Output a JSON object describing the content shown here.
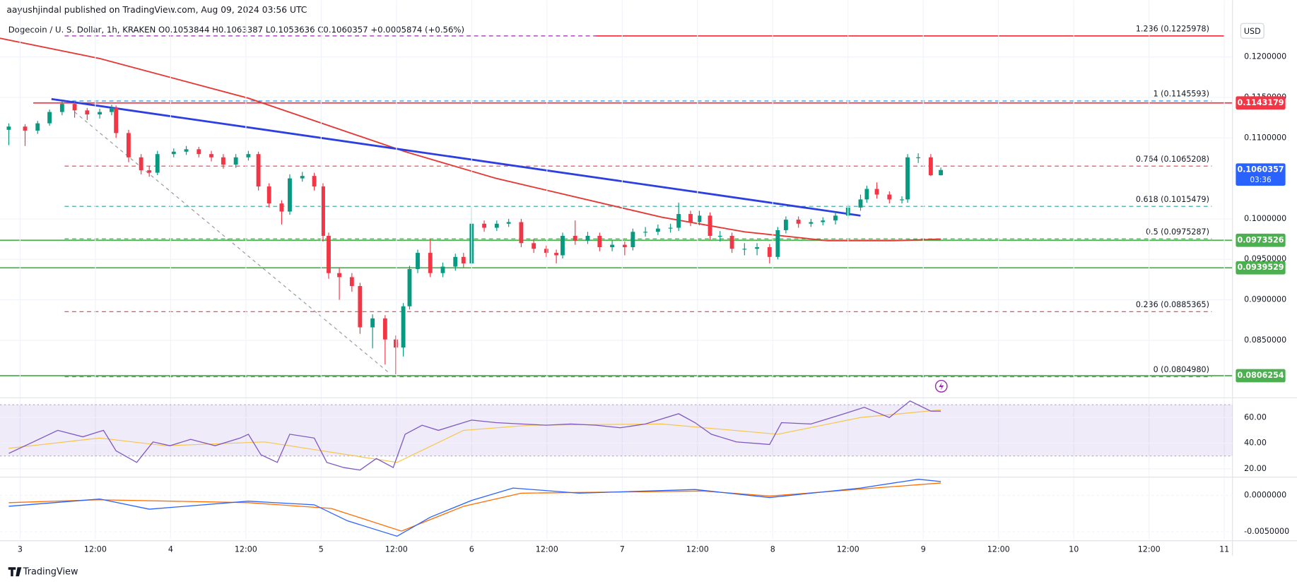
{
  "chart_data": {
    "type": "candlestick",
    "header": "aayushjindal published on TradingView.com, Aug 09, 2024 03:56 UTC",
    "title": "Dogecoin / U. S. Dollar, 1h, KRAKEN O0.1053844 H0.1063387 L0.1053636 C0.1060357 +0.0005874 (+0.56%)",
    "currency": "USD",
    "brand": "TradingView",
    "up_color": "#089981",
    "down_color": "#f23645",
    "x": [
      -1.8,
      0.8,
      2.8,
      4.7,
      6.7,
      8.7,
      10.7,
      12.7,
      14.6,
      15.3,
      17.3,
      19.3,
      20.6,
      21.9,
      24.5,
      26.5,
      28.5,
      30.5,
      32.4,
      34.4,
      36.4,
      38.0,
      39.7,
      41.7,
      43.0,
      45.0,
      46.9,
      48.3,
      49.2,
      50.9,
      52.9,
      54.2,
      56.2,
      58.2,
      59.9,
      61.1,
      62.1,
      63.4,
      65.4,
      67.4,
      69.4,
      70.7,
      72.0,
      74.0,
      76.0,
      77.9,
      79.9,
      81.9,
      83.9,
      85.5,
      86.5,
      88.5,
      90.5,
      92.4,
      94.4,
      96.4,
      97.7,
      99.7,
      101.7,
      103.7,
      105.0,
      106.9,
      108.3,
      110.0,
      111.6,
      113.5,
      115.5,
      117.5,
      119.5,
      120.8,
      122.1,
      124.1,
      126.1,
      128.0,
      130.0,
      132.0,
      134.0,
      135.0,
      136.6,
      138.6,
      140.6,
      141.5,
      143.2,
      145.2,
      146.8
    ],
    "open": [
      0.111,
      0.1114,
      0.1109,
      0.1118,
      0.1132,
      0.1142,
      0.1134,
      0.1129,
      0.1132,
      0.1137,
      0.1106,
      0.1076,
      0.106,
      0.1057,
      0.108,
      0.1083,
      0.1086,
      0.108,
      0.1076,
      0.1067,
      0.1076,
      0.108,
      0.104,
      0.1019,
      0.1009,
      0.105,
      0.1053,
      0.104,
      0.0979,
      0.0933,
      0.0928,
      0.0917,
      0.0866,
      0.0877,
      0.0851,
      0.0841,
      0.0892,
      0.0938,
      0.0958,
      0.0933,
      0.0941,
      0.0953,
      0.0945,
      0.0994,
      0.0989,
      0.0994,
      0.0996,
      0.097,
      0.0963,
      0.0958,
      0.0955,
      0.0979,
      0.0973,
      0.0979,
      0.0965,
      0.0968,
      0.0965,
      0.0984,
      0.0984,
      0.0988,
      0.0989,
      0.1006,
      0.0996,
      0.1004,
      0.0979,
      0.0979,
      0.0963,
      0.0963,
      0.0965,
      0.0953,
      0.0986,
      0.0999,
      0.0994,
      0.0996,
      0.0998,
      0.1004,
      0.1014,
      0.1024,
      0.1037,
      0.103,
      0.1024,
      0.1024,
      0.1076,
      0.1076,
      0.1053844
    ],
    "high": [
      0.1118,
      0.1117,
      0.1121,
      0.1135,
      0.1146,
      0.1145,
      0.1137,
      0.1136,
      0.1141,
      0.114,
      0.111,
      0.108,
      0.1065,
      0.1084,
      0.1087,
      0.109,
      0.1089,
      0.1084,
      0.108,
      0.108,
      0.1084,
      0.1083,
      0.1044,
      0.1023,
      0.1055,
      0.1058,
      0.1057,
      0.1044,
      0.0983,
      0.094,
      0.0933,
      0.0921,
      0.0882,
      0.0881,
      0.0856,
      0.0896,
      0.0942,
      0.0962,
      0.0975,
      0.0946,
      0.0957,
      0.0958,
      0.1015,
      0.0998,
      0.0998,
      0.1,
      0.1,
      0.0975,
      0.0967,
      0.0962,
      0.0983,
      0.0998,
      0.0984,
      0.0983,
      0.0973,
      0.0972,
      0.0988,
      0.099,
      0.0993,
      0.0994,
      0.102,
      0.101,
      0.101,
      0.1008,
      0.0985,
      0.0983,
      0.097,
      0.097,
      0.0969,
      0.099,
      0.1003,
      0.1003,
      0.1,
      0.1002,
      0.1008,
      0.1018,
      0.103,
      0.1041,
      0.1045,
      0.1034,
      0.1028,
      0.108,
      0.1081,
      0.108,
      0.1063387
    ],
    "low": [
      0.1091,
      0.109,
      0.1105,
      0.1115,
      0.1128,
      0.1125,
      0.1122,
      0.1124,
      0.1128,
      0.11,
      0.107,
      0.1055,
      0.1052,
      0.1054,
      0.1076,
      0.1079,
      0.1076,
      0.1071,
      0.1062,
      0.1063,
      0.1072,
      0.1035,
      0.1014,
      0.0993,
      0.1005,
      0.1046,
      0.1035,
      0.0972,
      0.0926,
      0.09,
      0.091,
      0.0858,
      0.084,
      0.082,
      0.0808,
      0.083,
      0.0888,
      0.0933,
      0.0928,
      0.0928,
      0.0936,
      0.094,
      0.0942,
      0.0984,
      0.0985,
      0.099,
      0.0965,
      0.0958,
      0.0953,
      0.0945,
      0.0951,
      0.0968,
      0.0969,
      0.096,
      0.096,
      0.0955,
      0.0961,
      0.0978,
      0.098,
      0.0983,
      0.0985,
      0.0991,
      0.0992,
      0.0974,
      0.0972,
      0.0958,
      0.0955,
      0.0955,
      0.0945,
      0.095,
      0.0982,
      0.0989,
      0.099,
      0.0992,
      0.0993,
      0.1,
      0.101,
      0.102,
      0.1025,
      0.1019,
      0.1019,
      0.102,
      0.1069,
      0.1053,
      0.1053636
    ],
    "close": [
      0.1114,
      0.1109,
      0.1118,
      0.1132,
      0.1142,
      0.1134,
      0.1129,
      0.1132,
      0.1137,
      0.1106,
      0.1076,
      0.106,
      0.1057,
      0.108,
      0.1083,
      0.1086,
      0.108,
      0.1076,
      0.1067,
      0.1076,
      0.108,
      0.104,
      0.1019,
      0.1009,
      0.105,
      0.1053,
      0.104,
      0.0979,
      0.0933,
      0.0928,
      0.0917,
      0.0866,
      0.0877,
      0.0851,
      0.0841,
      0.0892,
      0.0938,
      0.0958,
      0.0933,
      0.0941,
      0.0953,
      0.0945,
      0.0994,
      0.0989,
      0.0994,
      0.0996,
      0.097,
      0.0963,
      0.0958,
      0.0955,
      0.0979,
      0.0973,
      0.0979,
      0.0965,
      0.0968,
      0.0965,
      0.0984,
      0.0984,
      0.0988,
      0.0989,
      0.1006,
      0.0996,
      0.1004,
      0.0979,
      0.0979,
      0.0963,
      0.0963,
      0.0965,
      0.0953,
      0.0986,
      0.0999,
      0.0994,
      0.0996,
      0.0998,
      0.1004,
      0.1014,
      0.1024,
      0.1037,
      0.103,
      0.1024,
      0.1024,
      0.1076,
      0.1076,
      0.1053844,
      0.1060357
    ],
    "xlim": [
      -3.2,
      193.3
    ],
    "xticks": [
      {
        "value": 0,
        "label": "3"
      },
      {
        "value": 12,
        "label": "12:00"
      },
      {
        "value": 24,
        "label": "4"
      },
      {
        "value": 36,
        "label": "12:00"
      },
      {
        "value": 48,
        "label": "5"
      },
      {
        "value": 60,
        "label": "12:00"
      },
      {
        "value": 72,
        "label": "6"
      },
      {
        "value": 84,
        "label": "12:00"
      },
      {
        "value": 96,
        "label": "7"
      },
      {
        "value": 108,
        "label": "12:00"
      },
      {
        "value": 120,
        "label": "8"
      },
      {
        "value": 132,
        "label": "12:00"
      },
      {
        "value": 144,
        "label": "9"
      },
      {
        "value": 156,
        "label": "12:00"
      },
      {
        "value": 168,
        "label": "10"
      },
      {
        "value": 180,
        "label": "12:00"
      },
      {
        "value": 192,
        "label": "11"
      }
    ],
    "ylim": [
      0.078,
      0.127
    ],
    "yticks": [
      {
        "value": 0.12,
        "label": "0.1200000"
      },
      {
        "value": 0.115,
        "label": "0.1150000"
      },
      {
        "value": 0.11,
        "label": "0.1100000"
      },
      {
        "value": 0.1,
        "label": "0.1000000"
      },
      {
        "value": 0.095,
        "label": "0.0950000"
      },
      {
        "value": 0.09,
        "label": "0.0900000"
      },
      {
        "value": 0.085,
        "label": "0.0850000"
      }
    ],
    "grid": true,
    "fib_start": 7.1,
    "fib_levels": [
      {
        "value": 0.1225978,
        "label": "1.236 (0.1225978)",
        "color": "#9c27b0"
      },
      {
        "value": 0.1145593,
        "label": "1 (0.1145593)",
        "color": "#2196f3"
      },
      {
        "value": 0.1065208,
        "label": "0.764 (0.1065208)",
        "color": "#f23645"
      },
      {
        "value": 0.1015479,
        "label": "0.618 (0.1015479)",
        "color": "#26a69a"
      },
      {
        "value": 0.0975287,
        "label": "0.5 (0.0975287)",
        "color": "#4caf50"
      },
      {
        "value": 0.0885365,
        "label": "0.236 (0.0885365)",
        "color": "#f23645"
      },
      {
        "value": 0.080498,
        "label": "0 (0.0804980)",
        "color": "#787b86"
      }
    ],
    "levels": [
      {
        "value": 0.1143179,
        "label": "0.1143179",
        "color": "#f23645",
        "from": 2.1
      },
      {
        "value": 0.1225978,
        "label": null,
        "color": "#f23645",
        "from": 91.8
      },
      {
        "value": 0.0973526,
        "label": "0.0973526",
        "color": "#4caf50",
        "from": -3.2
      },
      {
        "value": 0.0939529,
        "label": "0.0939529",
        "color": "#4caf50",
        "from": -3.2
      },
      {
        "value": 0.0806254,
        "label": "0.0806254",
        "color": "#4caf50",
        "from": -3.2
      }
    ],
    "last": {
      "value": 0.1060357,
      "label": "0.1060357",
      "countdown": "03:36",
      "color": "#2962ff"
    },
    "trendline": {
      "color": "#2c3fe0",
      "x": [
        5.0,
        134.0
      ],
      "values": [
        0.1148,
        0.1004
      ]
    },
    "fib_connector": {
      "color": "#9598a1",
      "x": [
        8.7,
        58.8
      ],
      "values": [
        0.1132,
        0.081
      ]
    },
    "moving_average": {
      "color": "#e53935",
      "x": [
        -3.2,
        12.7,
        36.4,
        61.4,
        75.9,
        102.3,
        115.5,
        128.7,
        139.3,
        146.8
      ],
      "values": [
        0.1223,
        0.1198,
        0.1149,
        0.1083,
        0.105,
        0.1002,
        0.0984,
        0.0973,
        0.0973,
        0.0975
      ]
    },
    "rsi": {
      "ylim": [
        13.5,
        74.8
      ],
      "band": [
        30,
        70
      ],
      "yticks": [
        {
          "value": 60,
          "label": "60.00"
        },
        {
          "value": 40,
          "label": "40.00"
        },
        {
          "value": 20,
          "label": "20.00"
        }
      ],
      "line": {
        "color": "#7e57c2",
        "x": [
          -1.8,
          2.1,
          6.0,
          10.0,
          13.3,
          15.3,
          18.6,
          21.2,
          23.9,
          27.2,
          31.1,
          35.1,
          36.4,
          38.4,
          41.0,
          43.0,
          46.9,
          48.9,
          51.6,
          54.2,
          56.8,
          59.5,
          61.4,
          64.1,
          66.7,
          72.0,
          75.9,
          79.9,
          83.9,
          87.8,
          91.8,
          95.7,
          99.7,
          105.0,
          107.6,
          110.2,
          114.2,
          119.5,
          121.4,
          126.1,
          131.4,
          134.6,
          138.6,
          141.9,
          145.2,
          146.8
        ],
        "values": [
          32,
          41,
          50,
          45,
          50,
          34,
          25,
          41,
          38,
          43,
          38,
          44,
          47,
          31,
          25,
          47,
          44,
          25,
          21,
          19,
          28,
          21,
          47,
          54,
          50,
          58,
          56,
          55,
          54,
          55,
          54,
          52,
          55,
          63,
          56,
          47,
          41,
          39,
          56,
          55,
          63,
          68,
          60,
          73,
          65,
          65
        ]
      },
      "ma": {
        "color": "#f7c548",
        "x": [
          -1.8,
          12.7,
          23.2,
          39.0,
          60.1,
          70.7,
          81.2,
          102.3,
          120.8,
          134.0,
          146.8
        ],
        "values": [
          36,
          44,
          38,
          41,
          25,
          50,
          54,
          55,
          47,
          60,
          66
        ]
      }
    },
    "macd": {
      "ylim": [
        -0.006,
        0.0025
      ],
      "yticks": [
        {
          "value": 0,
          "label": "0.0000000"
        },
        {
          "value": -0.005,
          "label": "-0.0050000"
        }
      ],
      "line": {
        "color": "#2962ff",
        "x": [
          -1.8,
          12.7,
          20.6,
          36.4,
          46.9,
          52.2,
          60.1,
          65.4,
          72.0,
          78.6,
          89.1,
          107.6,
          119.5,
          134.0,
          143.2,
          146.8
        ],
        "values": [
          -0.0015,
          -0.0005,
          -0.0019,
          -0.0008,
          -0.0013,
          -0.0035,
          -0.0056,
          -0.003,
          -0.0007,
          0.001,
          0.0003,
          0.0008,
          -0.0003,
          0.001,
          0.0022,
          0.0019
        ]
      },
      "signal": {
        "color": "#ff6d00",
        "x": [
          -1.8,
          12.7,
          36.4,
          49.6,
          60.8,
          70.7,
          79.9,
          108.9,
          119.5,
          146.8
        ],
        "values": [
          -0.001,
          -0.0006,
          -0.001,
          -0.0018,
          -0.0049,
          -0.0015,
          0.0003,
          0.0006,
          -0.0001,
          0.0017
        ]
      }
    }
  }
}
